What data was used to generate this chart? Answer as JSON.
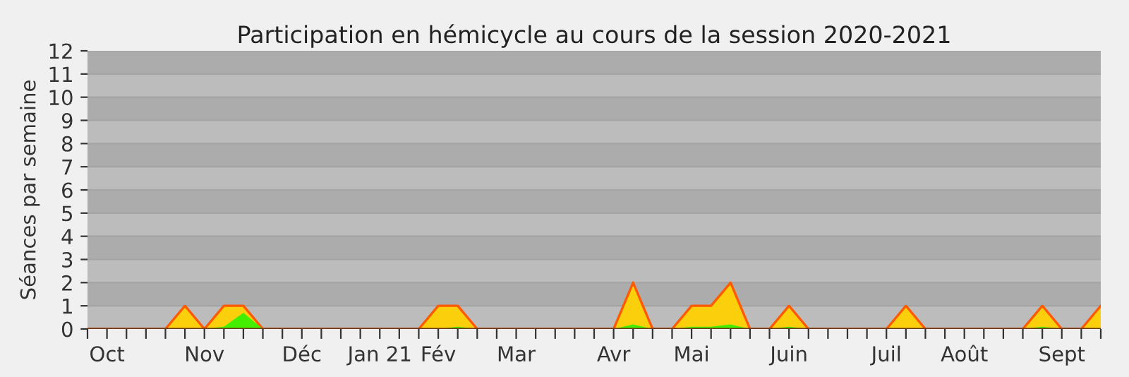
{
  "chart_data": {
    "type": "area",
    "title": "Participation en hémicycle au cours de la session 2020-2021",
    "ylabel": "Séances par semaine",
    "categories": [
      null,
      "Oct",
      null,
      null,
      null,
      null,
      "Nov",
      null,
      null,
      null,
      null,
      "Déc",
      null,
      null,
      null,
      "Jan 21",
      null,
      null,
      "Fév",
      null,
      null,
      null,
      "Mar",
      null,
      null,
      null,
      null,
      "Avr",
      null,
      null,
      null,
      "Mai",
      null,
      null,
      null,
      null,
      "Juin",
      null,
      null,
      null,
      null,
      "Juil",
      null,
      null,
      null,
      "Août",
      null,
      null,
      null,
      null,
      "Sept",
      null,
      null
    ],
    "series": [
      {
        "color": "#fccf0d",
        "values": [
          0,
          0,
          0,
          0,
          0,
          1,
          0,
          1,
          1,
          0,
          0,
          0,
          0,
          0,
          0,
          0,
          0,
          0,
          1,
          1,
          0,
          0,
          0,
          0,
          0,
          0,
          0,
          0,
          2,
          0,
          0,
          1,
          1,
          2,
          0,
          0,
          1,
          0,
          0,
          0,
          0,
          0,
          1,
          0,
          0,
          0,
          0,
          0,
          0,
          1,
          0,
          0,
          1
        ]
      },
      {
        "color": "#44ee00",
        "values": [
          0,
          0,
          0,
          0,
          0,
          0,
          0,
          0.1,
          0.7,
          0,
          0,
          0,
          0,
          0,
          0,
          0,
          0,
          0,
          0,
          0.1,
          0,
          0,
          0,
          0,
          0,
          0,
          0,
          0,
          0.2,
          0,
          0,
          0.1,
          0.1,
          0.2,
          0,
          0,
          0.1,
          0,
          0,
          0,
          0,
          0,
          0,
          0,
          0,
          0,
          0,
          0,
          0,
          0.1,
          0,
          0,
          0
        ]
      }
    ],
    "ylim": [
      0,
      12
    ],
    "yticks": [
      0,
      1,
      2,
      3,
      4,
      5,
      6,
      7,
      8,
      9,
      10,
      11,
      12
    ],
    "grid": "y",
    "legend": false,
    "bands": [
      {
        "axis": "y",
        "from": 1,
        "to": 2,
        "color": "#acacac"
      },
      {
        "axis": "y",
        "from": 3,
        "to": 4,
        "color": "#acacac"
      },
      {
        "axis": "y",
        "from": 5,
        "to": 6,
        "color": "#acacac"
      },
      {
        "axis": "y",
        "from": 7,
        "to": 8,
        "color": "#acacac"
      },
      {
        "axis": "y",
        "from": 9,
        "to": 10,
        "color": "#acacac"
      },
      {
        "axis": "y",
        "from": 11,
        "to": 12,
        "color": "#acacac"
      }
    ]
  }
}
